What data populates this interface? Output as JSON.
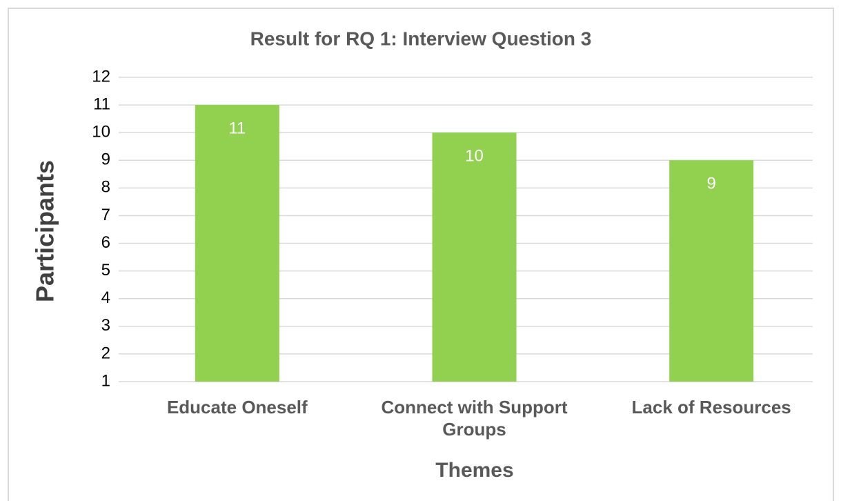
{
  "chart_data": {
    "type": "bar",
    "title": "Result for RQ 1: Interview Question 3",
    "x_label": "Themes",
    "y_label": "Participants",
    "categories": [
      "Educate Oneself",
      "Connect with Support Groups",
      "Lack of Resources"
    ],
    "values": [
      11,
      10,
      9
    ],
    "color": "#92d050",
    "ylim": [
      1,
      12
    ],
    "yticks": [
      1,
      2,
      3,
      4,
      5,
      6,
      7,
      8,
      9,
      10,
      11,
      12
    ],
    "grid": true
  }
}
